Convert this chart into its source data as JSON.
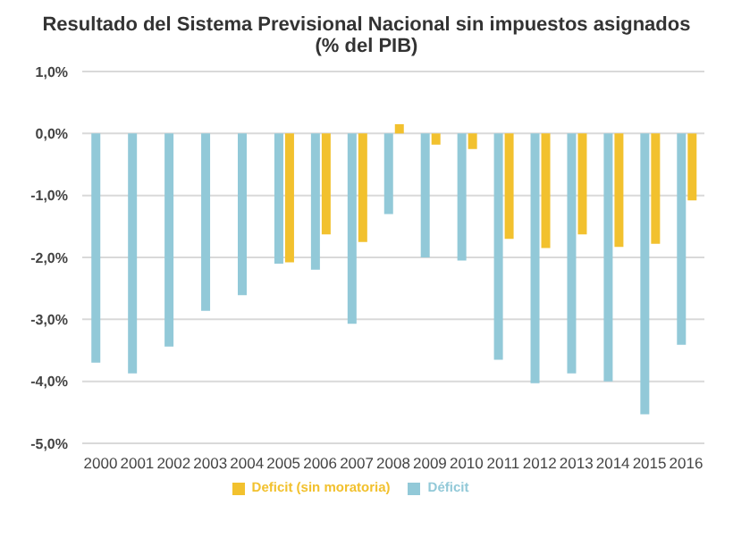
{
  "chart_data": {
    "type": "bar",
    "title": "Resultado del Sistema Previsional Nacional sin impuestos asignados",
    "subtitle": "(% del PIB)",
    "categories": [
      "2000",
      "2001",
      "2002",
      "2003",
      "2004",
      "2005",
      "2006",
      "2007",
      "2008",
      "2009",
      "2010",
      "2011",
      "2012",
      "2013",
      "2014",
      "2015",
      "2016"
    ],
    "series": [
      {
        "name": "Déficit",
        "color": "#92c9d8",
        "values": [
          -3.7,
          -3.87,
          -3.44,
          -2.86,
          -2.61,
          -2.1,
          -2.2,
          -3.07,
          -1.3,
          -2.0,
          -2.05,
          -3.65,
          -4.03,
          -3.87,
          -4.0,
          -4.53,
          -3.41
        ]
      },
      {
        "name": "Deficit (sin moratoria)",
        "color": "#f2c12e",
        "values": [
          null,
          null,
          null,
          null,
          null,
          -2.08,
          -1.63,
          -1.75,
          0.15,
          -0.18,
          -0.25,
          -1.7,
          -1.85,
          -1.63,
          -1.83,
          -1.78,
          -1.08
        ]
      }
    ],
    "ylim": [
      -5,
      1
    ],
    "yticks": [
      {
        "value": -5,
        "label": "-5,0%"
      },
      {
        "value": -4,
        "label": "-4,0%"
      },
      {
        "value": -3,
        "label": "-3,0%"
      },
      {
        "value": -2,
        "label": "-2,0%"
      },
      {
        "value": -1,
        "label": "-1,0%"
      },
      {
        "value": 0,
        "label": "0,0%"
      },
      {
        "value": 1,
        "label": "1,0%"
      }
    ],
    "grid": "y",
    "legend": "bottom"
  }
}
